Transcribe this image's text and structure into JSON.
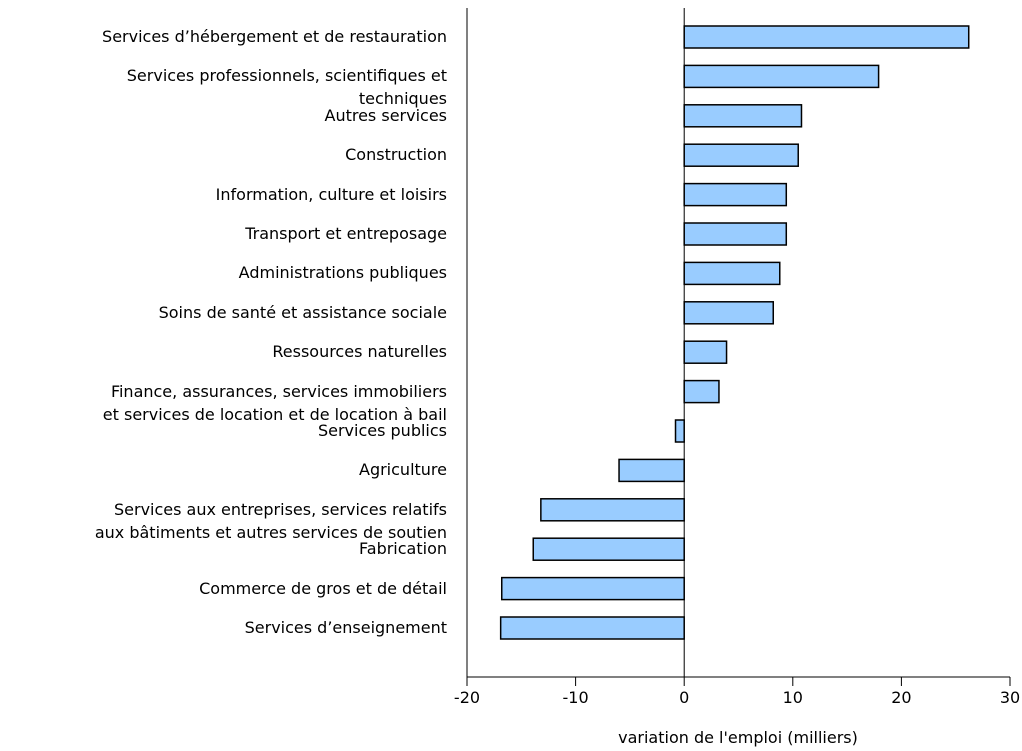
{
  "chart_data": {
    "type": "bar",
    "orientation": "horizontal",
    "x_label": "variation de l'emploi (milliers)",
    "categories": [
      "Services d’hébergement et de restauration",
      "Services professionnels, scientifiques et\ntechniques",
      "Autres services",
      "Construction",
      "Information, culture et loisirs",
      "Transport et entreposage",
      "Administrations publiques",
      "Soins de santé et assistance sociale",
      "Ressources naturelles",
      "Finance, assurances, services immobiliers\net services de location et de location à bail",
      "Services publics",
      "Agriculture",
      "Services aux entreprises, services relatifs\naux bâtiments et autres services de soutien",
      "Fabrication",
      "Commerce de gros et de détail",
      "Services d’enseignement"
    ],
    "values": [
      26.2,
      17.9,
      10.8,
      10.5,
      9.4,
      9.4,
      8.8,
      8.2,
      3.9,
      3.2,
      -0.8,
      -6.0,
      -13.2,
      -13.9,
      -16.8,
      -16.9
    ],
    "color": "#99ccff",
    "xlim": [
      -20,
      30
    ],
    "xticks": [
      -20,
      -10,
      0,
      10,
      20,
      30
    ]
  }
}
